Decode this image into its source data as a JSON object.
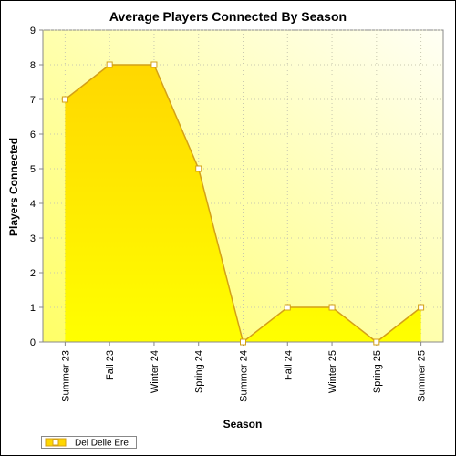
{
  "chart_data": {
    "type": "area",
    "title": "Average Players Connected By Season",
    "xlabel": "Season",
    "ylabel": "Players Connected",
    "categories": [
      "Summer 23",
      "Fall 23",
      "Winter 24",
      "Spring 24",
      "Summer 24",
      "Fall 24",
      "Winter 25",
      "Spring 25",
      "Summer 25"
    ],
    "series": [
      {
        "name": "Dei Delle Ere",
        "values": [
          7,
          8,
          8,
          5,
          0,
          1,
          1,
          0,
          1
        ]
      }
    ],
    "ylim": [
      0,
      9
    ],
    "yticks": [
      0,
      1,
      2,
      3,
      4,
      5,
      6,
      7,
      8,
      9
    ],
    "grid": true,
    "legend_position": "bottom-left",
    "colors": {
      "fill_top": "#ffd700",
      "fill_bottom": "#ffff00",
      "line": "#d4a017",
      "plot_bg": "#fffbe6"
    }
  }
}
